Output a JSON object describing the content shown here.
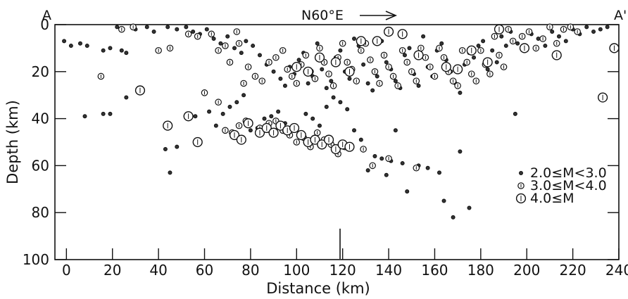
{
  "chart_data": {
    "type": "scatter",
    "left_label": "A",
    "right_label": "A'",
    "direction_label": "N60°E",
    "xlabel": "Distance (km)",
    "ylabel": "Depth (km)",
    "xlim": [
      -5,
      240
    ],
    "ylim": [
      100,
      0
    ],
    "x_ticks": [
      0,
      20,
      40,
      60,
      80,
      100,
      120,
      140,
      160,
      180,
      200,
      220,
      240
    ],
    "y_ticks": [
      0,
      20,
      40,
      60,
      80,
      100
    ],
    "legend": [
      {
        "label": "2.0≤M<3.0",
        "class": "small"
      },
      {
        "label": "3.0≤M<4.0",
        "class": "mid"
      },
      {
        "label": "4.0≤M",
        "class": "large"
      }
    ],
    "legend_position": "right",
    "series": [
      {
        "class": "small",
        "points": [
          [
            -1,
            7
          ],
          [
            2,
            9
          ],
          [
            6,
            8
          ],
          [
            9,
            9
          ],
          [
            16,
            11
          ],
          [
            19,
            10
          ],
          [
            24,
            11
          ],
          [
            26,
            12
          ],
          [
            22,
            1
          ],
          [
            30,
            2
          ],
          [
            35,
            1
          ],
          [
            38,
            3
          ],
          [
            44,
            1
          ],
          [
            48,
            2
          ],
          [
            52,
            1
          ],
          [
            55,
            3
          ],
          [
            58,
            4
          ],
          [
            61,
            2
          ],
          [
            64,
            6
          ],
          [
            67,
            8
          ],
          [
            70,
            5
          ],
          [
            73,
            10
          ],
          [
            76,
            12
          ],
          [
            78,
            7
          ],
          [
            81,
            9
          ],
          [
            84,
            13
          ],
          [
            87,
            17
          ],
          [
            90,
            20
          ],
          [
            93,
            23
          ],
          [
            95,
            26
          ],
          [
            97,
            18
          ],
          [
            99,
            21
          ],
          [
            101,
            15
          ],
          [
            103,
            12
          ],
          [
            105,
            25
          ],
          [
            107,
            22
          ],
          [
            109,
            8
          ],
          [
            111,
            19
          ],
          [
            113,
            27
          ],
          [
            115,
            24
          ],
          [
            117,
            14
          ],
          [
            119,
            11
          ],
          [
            121,
            20
          ],
          [
            123,
            23
          ],
          [
            125,
            6
          ],
          [
            127,
            9
          ],
          [
            129,
            17
          ],
          [
            131,
            25
          ],
          [
            133,
            28
          ],
          [
            135,
            22
          ],
          [
            137,
            7
          ],
          [
            139,
            16
          ],
          [
            141,
            19
          ],
          [
            143,
            24
          ],
          [
            145,
            27
          ],
          [
            147,
            13
          ],
          [
            149,
            10
          ],
          [
            151,
            21
          ],
          [
            153,
            26
          ],
          [
            155,
            5
          ],
          [
            157,
            18
          ],
          [
            159,
            22
          ],
          [
            161,
            11
          ],
          [
            163,
            8
          ],
          [
            165,
            15
          ],
          [
            167,
            20
          ],
          [
            169,
            25
          ],
          [
            171,
            29
          ],
          [
            173,
            17
          ],
          [
            175,
            12
          ],
          [
            177,
            14
          ],
          [
            179,
            9
          ],
          [
            181,
            7
          ],
          [
            183,
            19
          ],
          [
            185,
            11
          ],
          [
            187,
            16
          ],
          [
            189,
            5
          ],
          [
            191,
            9
          ],
          [
            193,
            3
          ],
          [
            196,
            8
          ],
          [
            199,
            10
          ],
          [
            202,
            4
          ],
          [
            205,
            6
          ],
          [
            208,
            9
          ],
          [
            211,
            3
          ],
          [
            214,
            5
          ],
          [
            217,
            7
          ],
          [
            220,
            2
          ],
          [
            223,
            4
          ],
          [
            226,
            1
          ],
          [
            229,
            3
          ],
          [
            232,
            2
          ],
          [
            235,
            1
          ],
          [
            8,
            39
          ],
          [
            16,
            38
          ],
          [
            19,
            38
          ],
          [
            26,
            31
          ],
          [
            43,
            53
          ],
          [
            45,
            63
          ],
          [
            48,
            52
          ],
          [
            56,
            39
          ],
          [
            62,
            37
          ],
          [
            65,
            43
          ],
          [
            68,
            38
          ],
          [
            71,
            35
          ],
          [
            74,
            33
          ],
          [
            77,
            30
          ],
          [
            80,
            45
          ],
          [
            83,
            44
          ],
          [
            86,
            40
          ],
          [
            89,
            39
          ],
          [
            92,
            37
          ],
          [
            95,
            42
          ],
          [
            98,
            44
          ],
          [
            101,
            47
          ],
          [
            104,
            38
          ],
          [
            107,
            40
          ],
          [
            110,
            43
          ],
          [
            113,
            35
          ],
          [
            116,
            31
          ],
          [
            119,
            33
          ],
          [
            122,
            36
          ],
          [
            125,
            45
          ],
          [
            128,
            49
          ],
          [
            131,
            62
          ],
          [
            134,
            56
          ],
          [
            137,
            57
          ],
          [
            139,
            64
          ],
          [
            141,
            58
          ],
          [
            143,
            45
          ],
          [
            146,
            59
          ],
          [
            148,
            71
          ],
          [
            153,
            60
          ],
          [
            157,
            61
          ],
          [
            162,
            63
          ],
          [
            164,
            75
          ],
          [
            168,
            82
          ],
          [
            171,
            54
          ],
          [
            175,
            78
          ],
          [
            195,
            38
          ]
        ]
      },
      {
        "class": "mid",
        "points": [
          [
            15,
            22
          ],
          [
            24,
            2
          ],
          [
            29,
            1
          ],
          [
            40,
            11
          ],
          [
            45,
            10
          ],
          [
            53,
            4
          ],
          [
            57,
            5
          ],
          [
            63,
            4
          ],
          [
            66,
            11
          ],
          [
            69,
            9
          ],
          [
            71,
            16
          ],
          [
            74,
            3
          ],
          [
            75,
            8
          ],
          [
            77,
            25
          ],
          [
            79,
            18
          ],
          [
            82,
            22
          ],
          [
            85,
            24
          ],
          [
            88,
            16
          ],
          [
            91,
            14
          ],
          [
            94,
            11
          ],
          [
            96,
            19
          ],
          [
            98,
            22
          ],
          [
            100,
            25
          ],
          [
            102,
            17
          ],
          [
            104,
            13
          ],
          [
            106,
            20
          ],
          [
            108,
            23
          ],
          [
            110,
            10
          ],
          [
            112,
            16
          ],
          [
            114,
            21
          ],
          [
            116,
            26
          ],
          [
            118,
            14
          ],
          [
            120,
            8
          ],
          [
            122,
            16
          ],
          [
            124,
            19
          ],
          [
            126,
            24
          ],
          [
            128,
            11
          ],
          [
            130,
            8
          ],
          [
            132,
            15
          ],
          [
            134,
            20
          ],
          [
            136,
            25
          ],
          [
            138,
            13
          ],
          [
            140,
            18
          ],
          [
            142,
            22
          ],
          [
            144,
            26
          ],
          [
            146,
            11
          ],
          [
            148,
            16
          ],
          [
            150,
            20
          ],
          [
            152,
            24
          ],
          [
            154,
            10
          ],
          [
            156,
            14
          ],
          [
            158,
            18
          ],
          [
            160,
            22
          ],
          [
            162,
            10
          ],
          [
            164,
            14
          ],
          [
            166,
            20
          ],
          [
            168,
            24
          ],
          [
            170,
            26
          ],
          [
            172,
            11
          ],
          [
            174,
            16
          ],
          [
            176,
            21
          ],
          [
            178,
            24
          ],
          [
            180,
            11
          ],
          [
            182,
            17
          ],
          [
            184,
            21
          ],
          [
            186,
            5
          ],
          [
            188,
            13
          ],
          [
            190,
            18
          ],
          [
            192,
            2
          ],
          [
            194,
            7
          ],
          [
            198,
            5
          ],
          [
            201,
            3
          ],
          [
            204,
            10
          ],
          [
            207,
            6
          ],
          [
            210,
            1
          ],
          [
            213,
            8
          ],
          [
            216,
            2
          ],
          [
            219,
            1
          ],
          [
            222,
            3
          ],
          [
            60,
            29
          ],
          [
            66,
            33
          ],
          [
            69,
            45
          ],
          [
            72,
            46
          ],
          [
            75,
            43
          ],
          [
            78,
            41
          ],
          [
            84,
            44
          ],
          [
            88,
            42
          ],
          [
            91,
            41
          ],
          [
            94,
            45
          ],
          [
            97,
            47
          ],
          [
            100,
            50
          ],
          [
            103,
            48
          ],
          [
            106,
            52
          ],
          [
            109,
            46
          ],
          [
            112,
            49
          ],
          [
            115,
            51
          ],
          [
            118,
            55
          ],
          [
            121,
            52
          ],
          [
            129,
            53
          ],
          [
            133,
            60
          ],
          [
            140,
            57
          ],
          [
            152,
            61
          ]
        ]
      },
      {
        "class": "large",
        "points": [
          [
            32,
            28
          ],
          [
            44,
            43
          ],
          [
            53,
            39
          ],
          [
            57,
            50
          ],
          [
            73,
            47
          ],
          [
            76,
            49
          ],
          [
            79,
            42
          ],
          [
            84,
            46
          ],
          [
            87,
            44
          ],
          [
            90,
            46
          ],
          [
            93,
            43
          ],
          [
            96,
            45
          ],
          [
            99,
            44
          ],
          [
            102,
            47
          ],
          [
            105,
            50
          ],
          [
            108,
            49
          ],
          [
            111,
            51
          ],
          [
            114,
            49
          ],
          [
            117,
            53
          ],
          [
            120,
            51
          ],
          [
            123,
            52
          ],
          [
            100,
            18
          ],
          [
            105,
            20
          ],
          [
            110,
            14
          ],
          [
            117,
            16
          ],
          [
            123,
            20
          ],
          [
            128,
            7
          ],
          [
            135,
            7
          ],
          [
            140,
            3
          ],
          [
            146,
            4
          ],
          [
            153,
            13
          ],
          [
            165,
            18
          ],
          [
            170,
            19
          ],
          [
            176,
            11
          ],
          [
            183,
            16
          ],
          [
            188,
            2
          ],
          [
            199,
            10
          ],
          [
            213,
            13
          ],
          [
            233,
            31
          ],
          [
            238,
            10
          ]
        ]
      }
    ]
  }
}
